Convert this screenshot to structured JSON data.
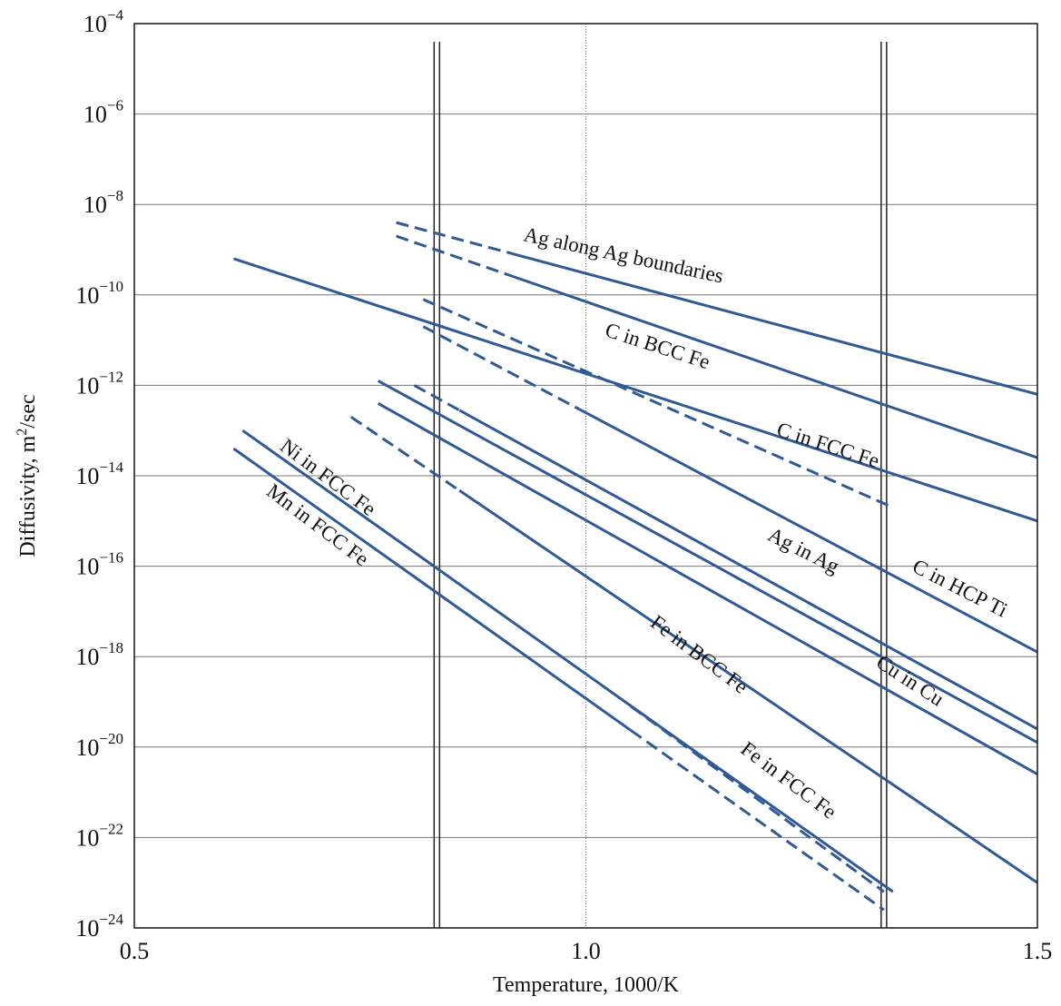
{
  "chart_data": {
    "type": "line",
    "title": "",
    "xlabel": "Temperature, 1000/K",
    "ylabel": "Diffusivity, m²/sec",
    "ylabel_parts": {
      "main": "Diffusivity, m",
      "sup": "2",
      "tail": "/sec"
    },
    "y_scale": "log",
    "xlim": [
      0.5,
      1.5
    ],
    "ylim_exponent": [
      -24,
      -4
    ],
    "x_ticks": [
      {
        "value": 0.5,
        "label": "0.5"
      },
      {
        "value": 1.0,
        "label": "1.0"
      },
      {
        "value": 1.5,
        "label": "1.5"
      }
    ],
    "y_ticks": [
      {
        "exp": -4,
        "base": "10",
        "sup": "−4"
      },
      {
        "exp": -6,
        "base": "10",
        "sup": "−6"
      },
      {
        "exp": -8,
        "base": "10",
        "sup": "−8"
      },
      {
        "exp": -10,
        "base": "10",
        "sup": "−10"
      },
      {
        "exp": -12,
        "base": "10",
        "sup": "−12"
      },
      {
        "exp": -14,
        "base": "10",
        "sup": "−14"
      },
      {
        "exp": -16,
        "base": "10",
        "sup": "−16"
      },
      {
        "exp": -18,
        "base": "10",
        "sup": "−18"
      },
      {
        "exp": -20,
        "base": "10",
        "sup": "−20"
      },
      {
        "exp": -22,
        "base": "10",
        "sup": "−22"
      },
      {
        "exp": -24,
        "base": "10",
        "sup": "−24"
      }
    ],
    "grid": true,
    "reference_lines_x": [
      0.835,
      1.33
    ],
    "series": [
      {
        "name": "Ag along Ag boundaries",
        "dashed_x": [
          0.79,
          0.92
        ],
        "solid_x": [
          0.92,
          1.5
        ],
        "y_log10": [
          -8.4,
          -12.2
        ]
      },
      {
        "name": "C in BCC Fe",
        "dashed_x": [
          0.79,
          0.92
        ],
        "solid_x": [
          0.92,
          1.5
        ],
        "y_log10": [
          -8.7,
          -13.6
        ]
      },
      {
        "name": "C in FCC Fe",
        "dashed_x": [
          0.82,
          1.34
        ],
        "solid_x": [],
        "y_log10": [
          -10.1,
          -14.7
        ]
      },
      {
        "name": "C in HCP Ti",
        "dashed_x": [],
        "solid_x": [
          0.61,
          1.5
        ],
        "y_log10": [
          -9.2,
          -15.0
        ]
      },
      {
        "name": "C in HCP Ti (dashed)",
        "dashed_x": [
          0.82,
          1.0
        ],
        "solid_x": [
          1.0,
          1.5
        ],
        "y_log10": [
          -10.7,
          -17.9
        ]
      },
      {
        "name": "Ag in Ag",
        "dashed_x": [
          0.81,
          0.86
        ],
        "solid_x": [
          0.86,
          1.5
        ],
        "y_log10": [
          -12.0,
          -19.6
        ]
      },
      {
        "name": "Cu in Cu",
        "dashed_x": [],
        "solid_x": [
          0.77,
          1.5
        ],
        "y_log10": [
          -11.9,
          -19.9
        ]
      },
      {
        "name": "Fe in BCC Fe",
        "dashed_x": [],
        "solid_x": [
          0.77,
          1.5
        ],
        "y_log10": [
          -12.4,
          -20.6
        ]
      },
      {
        "name": "Fe in FCC Fe (dashed)",
        "dashed_x": [
          0.74,
          0.86
        ],
        "solid_x": [
          0.86,
          1.5
        ],
        "y_log10": [
          -12.7,
          -23.0
        ]
      },
      {
        "name": "Fe in FCC Fe",
        "dashed_x": [
          1.05,
          1.33
        ],
        "solid_x": [],
        "y_log10": [
          -19.1,
          -23.2
        ]
      },
      {
        "name": "Ni in FCC Fe",
        "dashed_x": [],
        "solid_x": [
          0.62,
          1.34
        ],
        "y_log10": [
          -13.0,
          -23.2
        ]
      },
      {
        "name": "Mn in FCC Fe",
        "dashed_x": [
          1.05,
          1.33
        ],
        "solid_x": [
          0.61,
          1.05
        ],
        "y_log10": [
          -13.4,
          -23.6
        ]
      }
    ],
    "labels": [
      {
        "text": "Ag along Ag boundaries",
        "x": 0.93,
        "y_log10": -8.8,
        "angle": 12
      },
      {
        "text": "C in BCC Fe",
        "x": 1.02,
        "y_log10": -10.9,
        "angle": 18
      },
      {
        "text": "C in FCC Fe",
        "x": 1.21,
        "y_log10": -13.1,
        "angle": 18
      },
      {
        "text": "C in HCP Ti",
        "x": 1.36,
        "y_log10": -16.1,
        "angle": 27
      },
      {
        "text": "Ag in Ag",
        "x": 1.2,
        "y_log10": -15.4,
        "angle": 27
      },
      {
        "text": "Cu in Cu",
        "x": 1.32,
        "y_log10": -18.2,
        "angle": 33
      },
      {
        "text": "Fe in BCC Fe",
        "x": 1.07,
        "y_log10": -17.3,
        "angle": 37
      },
      {
        "text": "Fe in FCC Fe",
        "x": 1.17,
        "y_log10": -20.1,
        "angle": 37
      },
      {
        "text": "Ni in FCC Fe",
        "x": 0.66,
        "y_log10": -13.4,
        "angle": 37
      },
      {
        "text": "Mn in FCC Fe",
        "x": 0.645,
        "y_log10": -14.4,
        "angle": 37
      }
    ]
  },
  "colors": {
    "line": "#2f5a93",
    "grid": "#777777",
    "axis": "#222222"
  }
}
